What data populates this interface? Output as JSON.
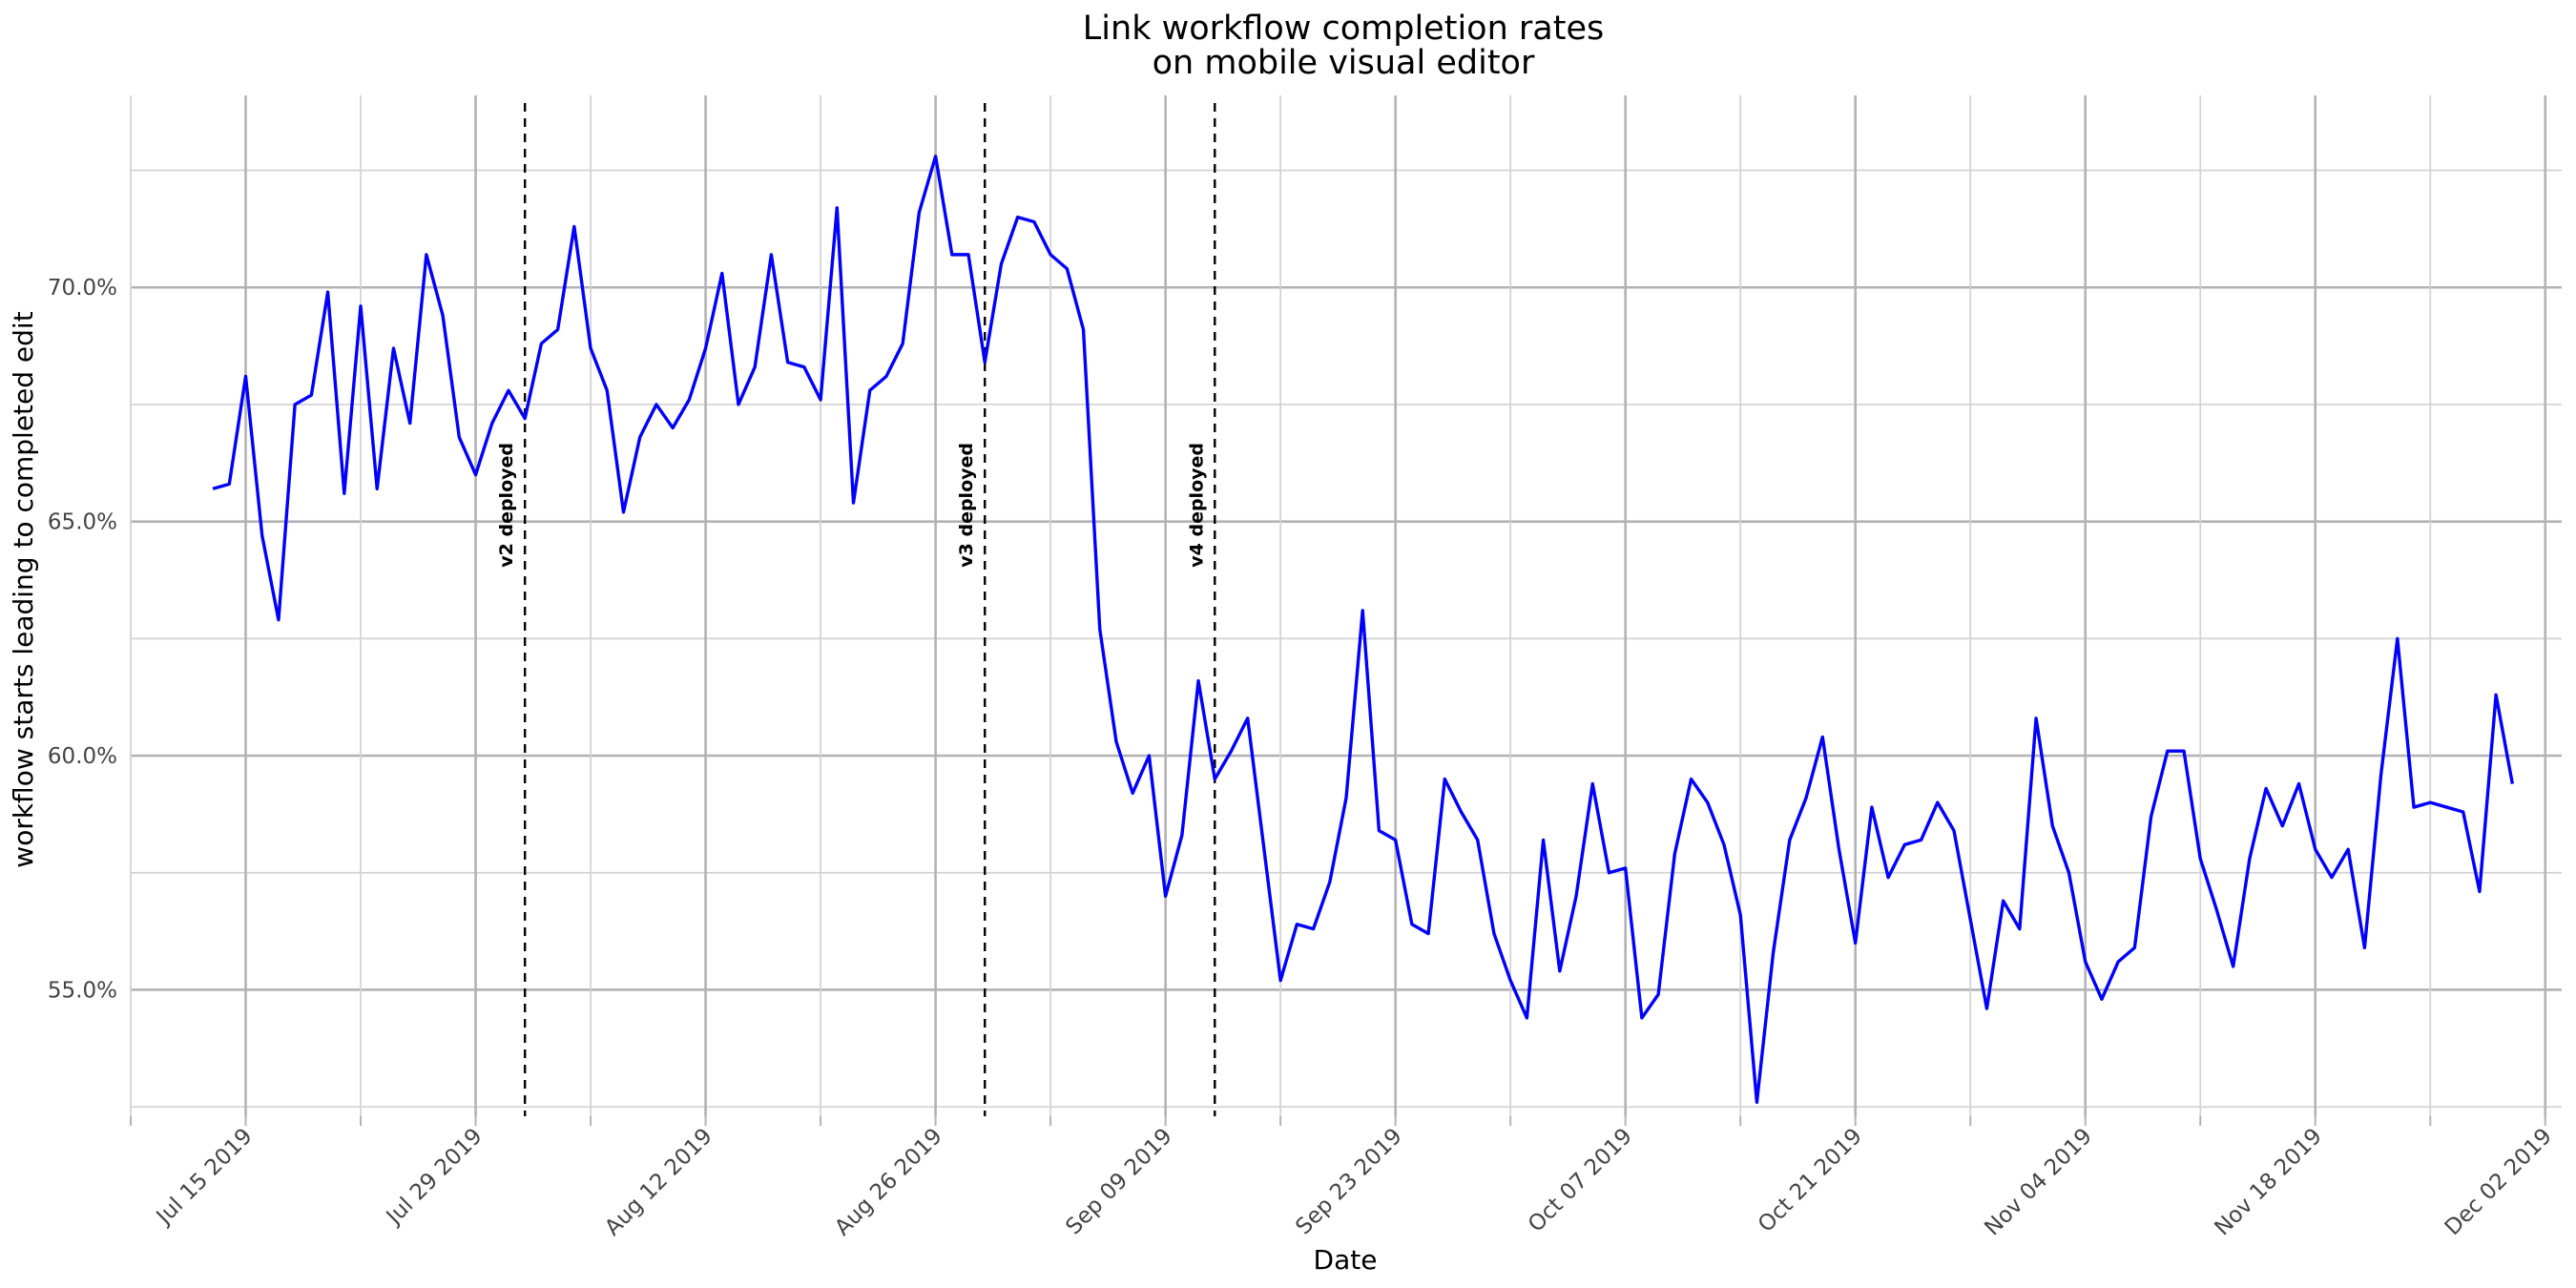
{
  "chart_data": {
    "type": "line",
    "title": [
      "Link workflow completion rates",
      "on mobile visual editor"
    ],
    "xlabel": "Date",
    "ylabel": "workflow starts leading to completed edit",
    "x_axis_kind": "date",
    "xlim": [
      "2019-07-08",
      "2019-12-03"
    ],
    "ylim": [
      0.523,
      0.741
    ],
    "y_ticks": [
      0.55,
      0.6,
      0.65,
      0.7
    ],
    "y_tick_labels": [
      "55.0%",
      "60.0%",
      "65.0%",
      "70.0%"
    ],
    "x_ticks": [
      "2019-07-15",
      "2019-07-29",
      "2019-08-12",
      "2019-08-26",
      "2019-09-09",
      "2019-09-23",
      "2019-10-07",
      "2019-10-21",
      "2019-11-04",
      "2019-11-18",
      "2019-12-02"
    ],
    "x_tick_labels": [
      "Jul 15 2019",
      "Jul 29 2019",
      "Aug 12 2019",
      "Aug 26 2019",
      "Sep 09 2019",
      "Sep 23 2019",
      "Oct 07 2019",
      "Oct 21 2019",
      "Nov 04 2019",
      "Nov 18 2019",
      "Dec 02 2019"
    ],
    "grid": true,
    "legend": "none",
    "line_color": "#0000ff",
    "annotations": [
      {
        "date": "2019-08-01",
        "label": "v2 deployed"
      },
      {
        "date": "2019-08-29",
        "label": "v3 deployed"
      },
      {
        "date": "2019-09-12",
        "label": "v4 deployed"
      }
    ],
    "series": [
      {
        "x_start": "2019-07-13",
        "values": [
          0.657,
          0.658,
          0.681,
          0.647,
          0.629,
          0.675,
          0.677,
          0.699,
          0.656,
          0.696,
          0.657,
          0.687,
          0.671,
          0.707,
          0.694,
          0.668,
          0.66,
          0.671,
          0.678,
          0.672,
          0.688,
          0.691,
          0.713,
          0.687,
          0.678,
          0.652,
          0.668,
          0.675,
          0.67,
          0.676,
          0.687,
          0.703,
          0.675,
          0.683,
          0.707,
          0.684,
          0.683,
          0.676,
          0.717,
          0.654,
          0.678,
          0.681,
          0.688,
          0.716,
          0.728,
          0.707,
          0.707,
          0.684,
          0.705,
          0.715,
          0.714,
          0.707,
          0.704,
          0.691,
          0.627,
          0.603,
          0.592,
          0.6,
          0.57,
          0.583,
          0.616,
          0.595,
          0.601,
          0.608,
          0.58,
          0.552,
          0.564,
          0.563,
          0.573,
          0.591,
          0.631,
          0.584,
          0.582,
          0.564,
          0.562,
          0.595,
          0.588,
          0.582,
          0.562,
          0.552,
          0.544,
          0.582,
          0.554,
          0.57,
          0.594,
          0.575,
          0.576,
          0.544,
          0.549,
          0.579,
          0.595,
          0.59,
          0.581,
          0.566,
          0.526,
          0.558,
          0.582,
          0.591,
          0.604,
          0.58,
          0.56,
          0.589,
          0.574,
          0.581,
          0.582,
          0.59,
          0.584,
          0.565,
          0.546,
          0.569,
          0.563,
          0.608,
          0.585,
          0.575,
          0.556,
          0.548,
          0.556,
          0.559,
          0.587,
          0.601,
          0.601,
          0.578,
          0.567,
          0.555,
          0.578,
          0.593,
          0.585,
          0.594,
          0.58,
          0.574,
          0.58,
          0.559,
          0.596,
          0.625,
          0.589,
          0.59,
          0.589,
          0.588,
          0.571,
          0.613,
          0.594
        ]
      }
    ]
  }
}
